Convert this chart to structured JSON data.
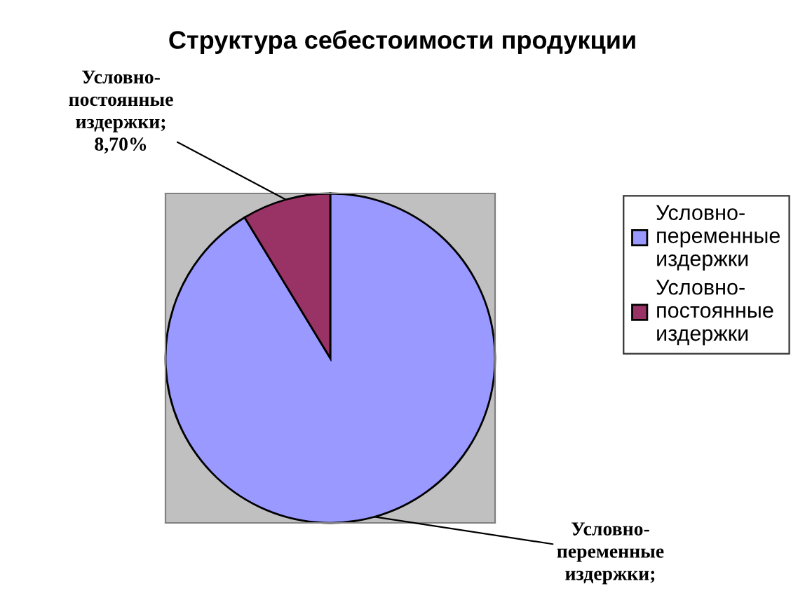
{
  "chart_data": {
    "type": "pie",
    "title": "Структура себестоимости продукции",
    "categories": [
      "Условно-переменные издержки",
      "Условно-постоянные издержки"
    ],
    "values": [
      91.3,
      8.7
    ],
    "colors": [
      "#9999ff",
      "#993366"
    ],
    "value_labels": [
      "Условно-переменные издержки;",
      "Условно-постоянные издержки; 8,70%"
    ],
    "legend": "right"
  }
}
